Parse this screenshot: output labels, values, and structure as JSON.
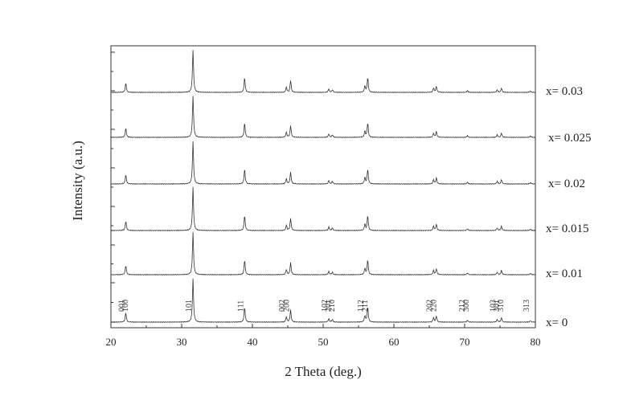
{
  "chart_data": {
    "type": "line",
    "title": "",
    "xlabel": "2 Theta (deg.)",
    "ylabel": "Intensity (a.u.)",
    "xlim": [
      20,
      80
    ],
    "xticks": [
      "20",
      "30",
      "40",
      "50",
      "60",
      "70",
      "80"
    ],
    "series": [
      {
        "name": "x= 0",
        "peaks": [
          [
            22.1,
            0.22
          ],
          [
            31.6,
            1.0
          ],
          [
            38.9,
            0.35
          ],
          [
            44.8,
            0.12
          ],
          [
            45.4,
            0.28
          ],
          [
            50.8,
            0.08
          ],
          [
            51.3,
            0.06
          ],
          [
            55.9,
            0.15
          ],
          [
            56.3,
            0.35
          ],
          [
            65.6,
            0.1
          ],
          [
            66.0,
            0.14
          ],
          [
            70.4,
            0.04
          ],
          [
            74.6,
            0.06
          ],
          [
            75.2,
            0.1
          ],
          [
            79.3,
            0.03
          ]
        ]
      },
      {
        "name": "x= 0.01",
        "peaks": [
          [
            22.1,
            0.22
          ],
          [
            31.6,
            1.0
          ],
          [
            38.9,
            0.35
          ],
          [
            44.8,
            0.12
          ],
          [
            45.4,
            0.28
          ],
          [
            50.8,
            0.08
          ],
          [
            51.3,
            0.06
          ],
          [
            55.9,
            0.15
          ],
          [
            56.3,
            0.35
          ],
          [
            65.6,
            0.1
          ],
          [
            66.0,
            0.14
          ],
          [
            70.4,
            0.04
          ],
          [
            74.6,
            0.06
          ],
          [
            75.2,
            0.1
          ],
          [
            79.3,
            0.03
          ]
        ]
      },
      {
        "name": "x= 0.015",
        "peaks": [
          [
            22.1,
            0.22
          ],
          [
            31.6,
            1.0
          ],
          [
            38.9,
            0.35
          ],
          [
            44.8,
            0.12
          ],
          [
            45.4,
            0.28
          ],
          [
            50.8,
            0.08
          ],
          [
            51.3,
            0.06
          ],
          [
            55.9,
            0.15
          ],
          [
            56.3,
            0.35
          ],
          [
            65.6,
            0.1
          ],
          [
            66.0,
            0.14
          ],
          [
            70.4,
            0.04
          ],
          [
            74.6,
            0.06
          ],
          [
            75.2,
            0.1
          ],
          [
            79.3,
            0.03
          ]
        ]
      },
      {
        "name": "x= 0.02",
        "peaks": [
          [
            22.1,
            0.22
          ],
          [
            31.6,
            1.0
          ],
          [
            38.9,
            0.35
          ],
          [
            44.8,
            0.12
          ],
          [
            45.4,
            0.28
          ],
          [
            50.8,
            0.08
          ],
          [
            51.3,
            0.06
          ],
          [
            55.9,
            0.15
          ],
          [
            56.3,
            0.35
          ],
          [
            65.6,
            0.1
          ],
          [
            66.0,
            0.14
          ],
          [
            70.4,
            0.04
          ],
          [
            74.6,
            0.06
          ],
          [
            75.2,
            0.1
          ],
          [
            79.3,
            0.03
          ]
        ]
      },
      {
        "name": "x= 0.025",
        "peaks": [
          [
            22.1,
            0.22
          ],
          [
            31.6,
            1.0
          ],
          [
            38.9,
            0.35
          ],
          [
            44.8,
            0.12
          ],
          [
            45.4,
            0.28
          ],
          [
            50.8,
            0.08
          ],
          [
            51.3,
            0.06
          ],
          [
            55.9,
            0.15
          ],
          [
            56.3,
            0.35
          ],
          [
            65.6,
            0.1
          ],
          [
            66.0,
            0.14
          ],
          [
            70.4,
            0.04
          ],
          [
            74.6,
            0.06
          ],
          [
            75.2,
            0.1
          ],
          [
            79.3,
            0.03
          ]
        ]
      },
      {
        "name": "x= 0.03",
        "peaks": [
          [
            22.1,
            0.22
          ],
          [
            31.6,
            1.0
          ],
          [
            38.9,
            0.35
          ],
          [
            44.8,
            0.12
          ],
          [
            45.4,
            0.28
          ],
          [
            50.8,
            0.08
          ],
          [
            51.3,
            0.06
          ],
          [
            55.9,
            0.15
          ],
          [
            56.3,
            0.35
          ],
          [
            65.6,
            0.1
          ],
          [
            66.0,
            0.14
          ],
          [
            70.4,
            0.04
          ],
          [
            74.6,
            0.06
          ],
          [
            75.2,
            0.1
          ],
          [
            79.3,
            0.03
          ]
        ]
      }
    ],
    "peak_labels": [
      {
        "text": "001",
        "x": 22.1
      },
      {
        "text": "100",
        "x": 22.6
      },
      {
        "text": "101",
        "x": 31.6
      },
      {
        "text": "111",
        "x": 38.9
      },
      {
        "text": "002",
        "x": 44.8
      },
      {
        "text": "200",
        "x": 45.4
      },
      {
        "text": "102",
        "x": 50.8
      },
      {
        "text": "201",
        "x": 51.3
      },
      {
        "text": "210",
        "x": 51.8
      },
      {
        "text": "112",
        "x": 55.9
      },
      {
        "text": "211",
        "x": 56.5
      },
      {
        "text": "202",
        "x": 65.6
      },
      {
        "text": "220",
        "x": 66.2
      },
      {
        "text": "212",
        "x": 70.2
      },
      {
        "text": "300",
        "x": 70.8
      },
      {
        "text": "103",
        "x": 74.6
      },
      {
        "text": "301",
        "x": 75.1
      },
      {
        "text": "310",
        "x": 75.7
      },
      {
        "text": "313",
        "x": 79.3
      }
    ],
    "grid": false,
    "legend": "none"
  }
}
